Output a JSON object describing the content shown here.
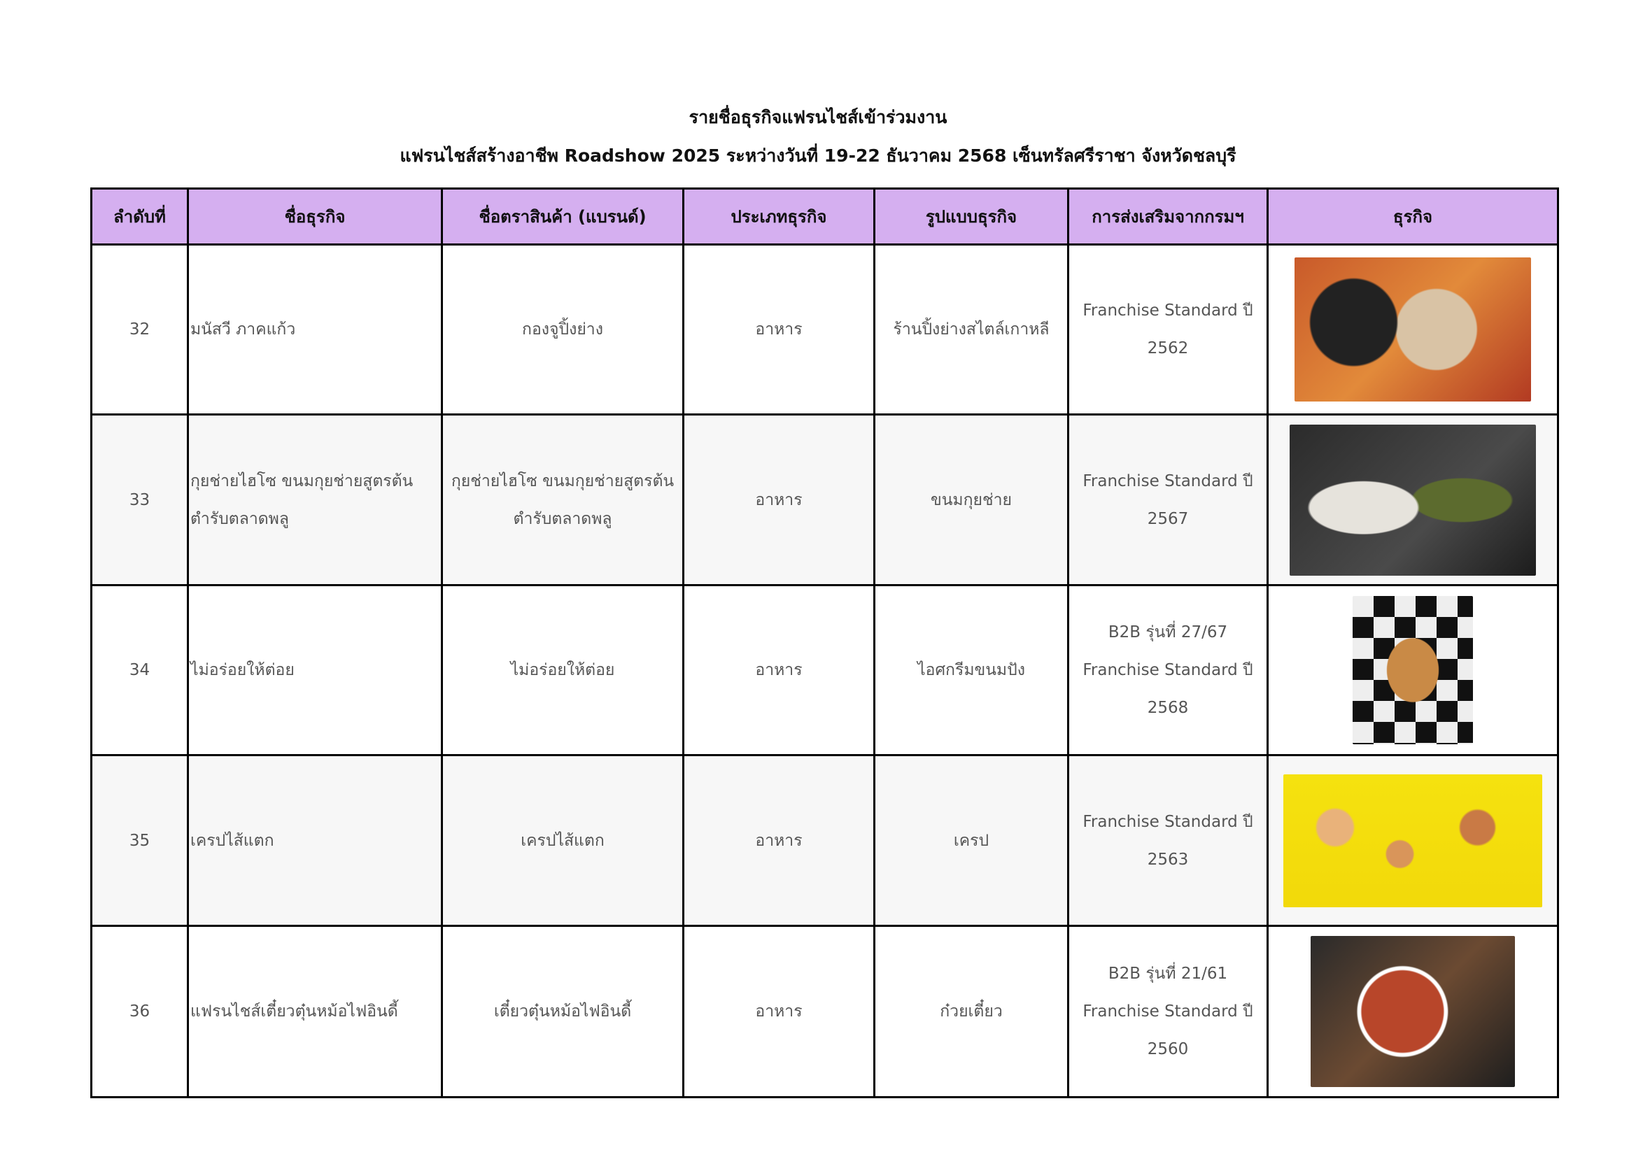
{
  "header": {
    "title": "รายชื่อธุรกิจแฟรนไชส์เข้าร่วมงาน",
    "subtitle": "แฟรนไชส์สร้างอาชีพ Roadshow 2025 ระหว่างวันที่ 19-22 ธันวาคม 2568  เซ็นทรัลศรีราชา จังหวัดชลบุรี"
  },
  "colors": {
    "header_bg": "#d5aff0",
    "text": "#555555"
  },
  "table": {
    "columns": [
      "ลำดับที่",
      "ชื่อธุรกิจ",
      "ชื่อตราสินค้า (แบรนด์)",
      "ประเภทธุรกิจ",
      "รูปแบบธุรกิจ",
      "การส่งเสริมจากกรมฯ",
      "ธุรกิจ"
    ],
    "rows": [
      {
        "no": "32",
        "business": "มนัสวี  ภาคแก้ว",
        "brand": "กองจูปิ้งย่าง",
        "type": "อาหาร",
        "format": "ร้านปิ้งย่างสไตล์เกาหลี",
        "promo": [
          "Franchise Standard ปี",
          "2562"
        ],
        "image": "korean-bbq-photo"
      },
      {
        "no": "33",
        "business": "กุยช่ายไฮโซ ขนมกุยช่ายสูตรต้นตำรับตลาดพลู",
        "brand": "กุยช่ายไฮโซ ขนมกุยช่ายสูตรต้นตำรับตลาดพลู",
        "type": "อาหาร",
        "format": "ขนมกุยช่าย",
        "promo": [
          "Franchise Standard ปี",
          "2567"
        ],
        "image": "chive-dumpling-photo"
      },
      {
        "no": "34",
        "business": "ไม่อร่อยให้ต่อย",
        "brand": "ไม่อร่อยให้ต่อย",
        "type": "อาหาร",
        "format": "ไอศกรีมขนมปัง",
        "promo": [
          "B2B รุ่นที่ 27/67",
          "Franchise Standard ปี",
          "2568"
        ],
        "image": "ice-cream-bread-photo"
      },
      {
        "no": "35",
        "business": "เครปไส้แตก",
        "brand": "เครปไส้แตก",
        "type": "อาหาร",
        "format": "เครป",
        "promo": [
          "Franchise Standard ปี",
          "2563"
        ],
        "image": "crepe-menu-photo"
      },
      {
        "no": "36",
        "business": "แฟรนไชส์เตี๋ยวตุ๋นหม้อไฟอินดี้",
        "brand": "เตี๋ยวตุ๋นหม้อไฟอินดี้",
        "type": "อาหาร",
        "format": "ก๋วยเตี๋ยว",
        "promo": [
          "B2B รุ่นที่ 21/61",
          "Franchise Standard ปี",
          "2560"
        ],
        "image": "noodle-hotpot-photo"
      }
    ]
  }
}
